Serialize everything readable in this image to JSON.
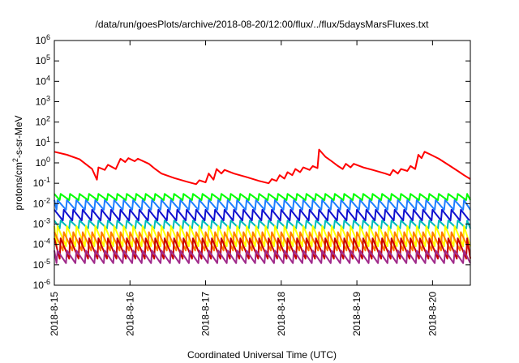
{
  "chart_data": {
    "type": "line",
    "title": "/data/run/goesPlots/archive/2018-08-20/12:00/flux/../flux/5daysMarsFluxes.txt",
    "xlabel": "Coordinated Universal Time (UTC)",
    "ylabel": {
      "base": "protons/cm",
      "sup": "2",
      "rest": "-s-sr-MeV"
    },
    "y_scale": "log",
    "ylim": [
      1e-06,
      1000000.0
    ],
    "y_ticks": [
      {
        "value": 1e-06,
        "base": "10",
        "exp": "-6"
      },
      {
        "value": 1e-05,
        "base": "10",
        "exp": "-5"
      },
      {
        "value": 0.0001,
        "base": "10",
        "exp": "-4"
      },
      {
        "value": 0.001,
        "base": "10",
        "exp": "-3"
      },
      {
        "value": 0.01,
        "base": "10",
        "exp": "-2"
      },
      {
        "value": 0.1,
        "base": "10",
        "exp": "-1"
      },
      {
        "value": 1,
        "base": "10",
        "exp": "0"
      },
      {
        "value": 10,
        "base": "10",
        "exp": "1"
      },
      {
        "value": 100,
        "base": "10",
        "exp": "2"
      },
      {
        "value": 1000,
        "base": "10",
        "exp": "3"
      },
      {
        "value": 10000,
        "base": "10",
        "exp": "4"
      },
      {
        "value": 100000,
        "base": "10",
        "exp": "5"
      },
      {
        "value": 1000000,
        "base": "10",
        "exp": "6"
      }
    ],
    "xlim": [
      "2018-08-15T00:00",
      "2018-08-20T12:00"
    ],
    "x_ticks": [
      {
        "value": "2018-08-15T00:00",
        "label": "2018-8-15"
      },
      {
        "value": "2018-08-16T00:00",
        "label": "2018-8-16"
      },
      {
        "value": "2018-08-17T00:00",
        "label": "2018-8-17"
      },
      {
        "value": "2018-08-18T00:00",
        "label": "2018-8-18"
      },
      {
        "value": "2018-08-19T00:00",
        "label": "2018-8-19"
      },
      {
        "value": "2018-08-20T00:00",
        "label": "2018-8-20"
      }
    ],
    "grid": false,
    "series": [
      {
        "color": "#ff0000",
        "style": "piecewise",
        "points": [
          [
            "2018-08-15T00:00",
            3.5
          ],
          [
            "2018-08-15T04:00",
            2.5
          ],
          [
            "2018-08-15T08:00",
            1.5
          ],
          [
            "2018-08-15T12:00",
            0.5
          ],
          [
            "2018-08-15T13:30",
            0.15
          ],
          [
            "2018-08-15T14:00",
            0.6
          ],
          [
            "2018-08-15T16:00",
            0.45
          ],
          [
            "2018-08-15T17:00",
            0.8
          ],
          [
            "2018-08-15T19:30",
            0.5
          ],
          [
            "2018-08-15T21:00",
            1.6
          ],
          [
            "2018-08-15T22:30",
            1.1
          ],
          [
            "2018-08-15T23:30",
            1.7
          ],
          [
            "2018-08-16T01:30",
            1.2
          ],
          [
            "2018-08-16T02:30",
            1.6
          ],
          [
            "2018-08-16T06:00",
            0.9
          ],
          [
            "2018-08-16T08:00",
            0.5
          ],
          [
            "2018-08-16T10:00",
            0.3
          ],
          [
            "2018-08-16T14:00",
            0.18
          ],
          [
            "2018-08-16T18:00",
            0.12
          ],
          [
            "2018-08-16T21:00",
            0.09
          ],
          [
            "2018-08-16T22:00",
            0.14
          ],
          [
            "2018-08-17T00:00",
            0.11
          ],
          [
            "2018-08-17T01:00",
            0.3
          ],
          [
            "2018-08-17T02:30",
            0.15
          ],
          [
            "2018-08-17T03:30",
            0.5
          ],
          [
            "2018-08-17T05:00",
            0.3
          ],
          [
            "2018-08-17T06:00",
            0.45
          ],
          [
            "2018-08-17T09:00",
            0.3
          ],
          [
            "2018-08-17T13:00",
            0.2
          ],
          [
            "2018-08-17T17:00",
            0.13
          ],
          [
            "2018-08-17T20:00",
            0.1
          ],
          [
            "2018-08-17T21:00",
            0.16
          ],
          [
            "2018-08-17T22:30",
            0.13
          ],
          [
            "2018-08-17T23:30",
            0.25
          ],
          [
            "2018-08-18T01:00",
            0.17
          ],
          [
            "2018-08-18T02:00",
            0.35
          ],
          [
            "2018-08-18T03:30",
            0.25
          ],
          [
            "2018-08-18T04:30",
            0.5
          ],
          [
            "2018-08-18T06:00",
            0.35
          ],
          [
            "2018-08-18T07:00",
            0.6
          ],
          [
            "2018-08-18T09:00",
            0.45
          ],
          [
            "2018-08-18T10:00",
            0.7
          ],
          [
            "2018-08-18T11:30",
            0.55
          ],
          [
            "2018-08-18T12:00",
            4.5
          ],
          [
            "2018-08-18T14:00",
            2.0
          ],
          [
            "2018-08-18T16:00",
            1.2
          ],
          [
            "2018-08-18T18:00",
            0.7
          ],
          [
            "2018-08-18T19:30",
            0.5
          ],
          [
            "2018-08-18T20:30",
            0.9
          ],
          [
            "2018-08-18T22:00",
            0.6
          ],
          [
            "2018-08-18T23:00",
            0.9
          ],
          [
            "2018-08-19T02:00",
            0.6
          ],
          [
            "2018-08-19T05:00",
            0.45
          ],
          [
            "2018-08-19T09:00",
            0.3
          ],
          [
            "2018-08-19T10:30",
            0.25
          ],
          [
            "2018-08-19T11:30",
            0.45
          ],
          [
            "2018-08-19T13:00",
            0.3
          ],
          [
            "2018-08-19T14:00",
            0.5
          ],
          [
            "2018-08-19T16:00",
            0.4
          ],
          [
            "2018-08-19T17:00",
            0.7
          ],
          [
            "2018-08-19T18:30",
            0.5
          ],
          [
            "2018-08-19T19:30",
            2.5
          ],
          [
            "2018-08-19T20:30",
            1.7
          ],
          [
            "2018-08-19T21:30",
            3.5
          ],
          [
            "2018-08-19T23:30",
            2.5
          ],
          [
            "2018-08-20T02:00",
            1.6
          ],
          [
            "2018-08-20T05:00",
            0.8
          ],
          [
            "2018-08-20T08:00",
            0.4
          ],
          [
            "2018-08-20T10:00",
            0.25
          ],
          [
            "2018-08-20T12:00",
            0.16
          ]
        ]
      },
      {
        "color": "#00ff00",
        "style": "sawtooth",
        "top": 0.03,
        "bottom": 0.015,
        "period_hours": 3
      },
      {
        "color": "#1e7fff",
        "style": "sawtooth",
        "top": 0.015,
        "bottom": 0.005,
        "period_hours": 3
      },
      {
        "color": "#1010d0",
        "style": "sawtooth",
        "top": 0.005,
        "bottom": 0.0015,
        "period_hours": 3
      },
      {
        "color": "#00bbbb",
        "style": "sawtooth",
        "top": 0.0015,
        "bottom": 0.0006,
        "period_hours": 3
      },
      {
        "color": "#ffff00",
        "style": "sawtooth",
        "top": 0.0008,
        "bottom": 8e-05,
        "period_hours": 3
      },
      {
        "color": "#ff7a00",
        "style": "sawtooth",
        "top": 0.0004,
        "bottom": 5e-05,
        "period_hours": 3
      },
      {
        "color": "#c80000",
        "style": "sawtooth",
        "top": 0.0002,
        "bottom": 2e-05,
        "period_hours": 3
      },
      {
        "color": "#a02a8a",
        "style": "sawtooth",
        "top": 5e-05,
        "bottom": 1.2e-05,
        "period_hours": 3
      }
    ]
  }
}
